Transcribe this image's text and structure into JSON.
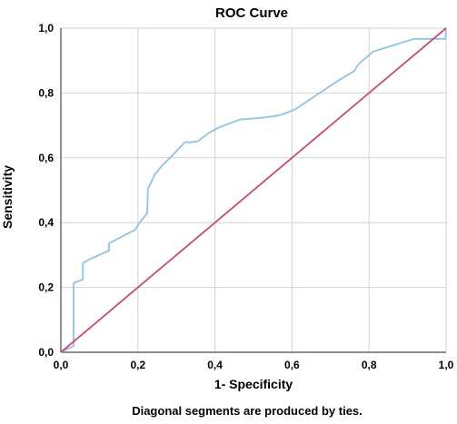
{
  "chart_data": {
    "type": "line",
    "title": "ROC Curve",
    "xlabel": "1- Specificity",
    "ylabel": "Sensitivity",
    "footnote": "Diagonal segments are produced by ties.",
    "xlim": [
      0,
      1
    ],
    "ylim": [
      0,
      1
    ],
    "x_ticks": [
      "0,0",
      "0,2",
      "0,4",
      "0,6",
      "0,8",
      "1,0"
    ],
    "y_ticks": [
      "0,0",
      "0,2",
      "0,4",
      "0,6",
      "0,8",
      "1,0"
    ],
    "grid": true,
    "legend": "none",
    "series": [
      {
        "color": "#8ec3e2",
        "x": [
          0.0,
          0.033,
          0.033,
          0.057,
          0.057,
          0.071,
          0.125,
          0.125,
          0.193,
          0.201,
          0.224,
          0.226,
          0.244,
          0.262,
          0.29,
          0.322,
          0.337,
          0.355,
          0.383,
          0.411,
          0.465,
          0.526,
          0.558,
          0.575,
          0.609,
          0.659,
          0.72,
          0.763,
          0.767,
          0.78,
          0.811,
          0.846,
          0.917,
          0.943,
          0.998,
          1.0
        ],
        "y": [
          0.0,
          0.02,
          0.214,
          0.225,
          0.275,
          0.285,
          0.314,
          0.336,
          0.378,
          0.394,
          0.429,
          0.504,
          0.549,
          0.575,
          0.608,
          0.648,
          0.648,
          0.65,
          0.676,
          0.694,
          0.718,
          0.724,
          0.729,
          0.734,
          0.75,
          0.79,
          0.838,
          0.869,
          0.88,
          0.897,
          0.928,
          0.941,
          0.967,
          0.967,
          0.967,
          1.0
        ]
      },
      {
        "color": "#cc4a72",
        "x": [
          0,
          1
        ],
        "y": [
          0,
          1
        ]
      }
    ]
  },
  "colors": {
    "grid": "#d2d2d2",
    "axis": "#4a4a4a",
    "roc_curve": "#8ec3e2",
    "reference_line": "#cc4a72"
  }
}
